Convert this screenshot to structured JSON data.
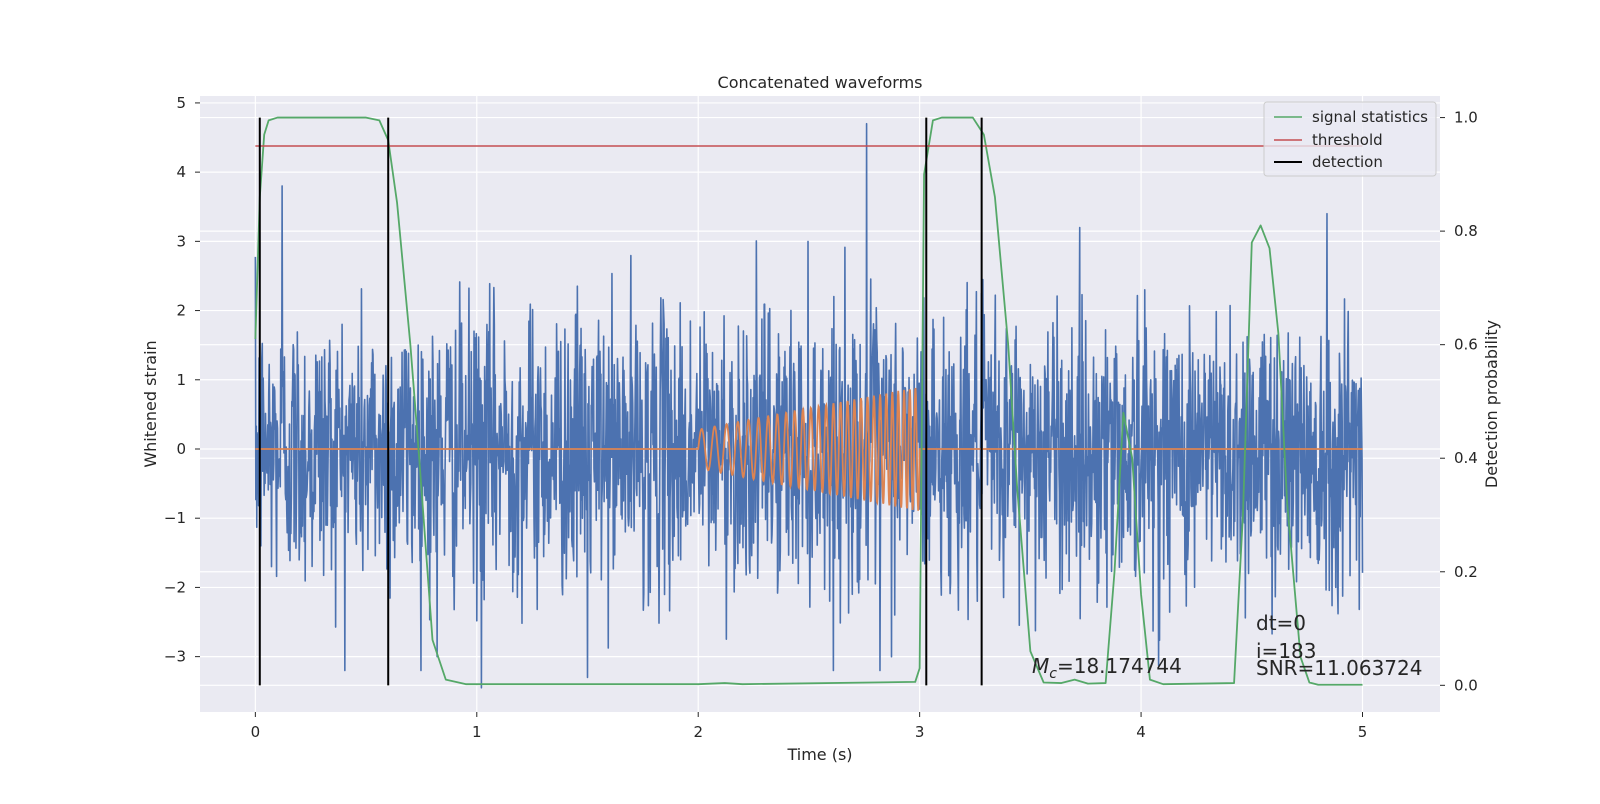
{
  "chart_data": {
    "type": "line",
    "title": "Concatenated waveforms",
    "xlabel": "Time (s)",
    "ylabel": "Whitened strain",
    "y2label": "Detection probability",
    "xlim": [
      -0.25,
      5.35
    ],
    "ylim": [
      -3.8,
      5.1
    ],
    "y2lim": [
      -0.047,
      1.038
    ],
    "x_ticks": [
      "0",
      "1",
      "2",
      "3",
      "4",
      "5"
    ],
    "y_ticks": [
      "−3",
      "−2",
      "−1",
      "0",
      "1",
      "2",
      "3",
      "4",
      "5"
    ],
    "y2_ticks": [
      "0.0",
      "0.2",
      "0.4",
      "0.6",
      "0.8",
      "1.0"
    ],
    "grid": true,
    "legend_position": "top-right",
    "series": [
      {
        "name": "",
        "kind": "whitened-strain-noise",
        "axis": "left",
        "color": "#4c72b0",
        "x_range": [
          0,
          5
        ],
        "approx_std": 1.0,
        "notable_peaks": [
          [
            0.12,
            3.8
          ],
          [
            2.76,
            4.7
          ],
          [
            4.84,
            3.4
          ],
          [
            0.82,
            -3.0
          ],
          [
            1.02,
            -3.45
          ],
          [
            1.5,
            -3.3
          ],
          [
            2.82,
            -3.2
          ]
        ]
      },
      {
        "name": "",
        "kind": "injected-chirp",
        "axis": "left",
        "color": "#dd8452",
        "x_range": [
          0,
          5
        ],
        "chirp_start": 2.0,
        "chirp_end": 3.0,
        "start_amplitude": 0.28,
        "end_amplitude": 0.9,
        "f_start_hz": 16,
        "f_end_hz": 40
      },
      {
        "name": "signal statistics",
        "axis": "right",
        "color": "#55a868",
        "points": [
          [
            0.0,
            0.61
          ],
          [
            0.02,
            0.86
          ],
          [
            0.04,
            0.97
          ],
          [
            0.06,
            0.995
          ],
          [
            0.1,
            1.0
          ],
          [
            0.5,
            1.0
          ],
          [
            0.56,
            0.995
          ],
          [
            0.6,
            0.96
          ],
          [
            0.64,
            0.85
          ],
          [
            0.7,
            0.6
          ],
          [
            0.74,
            0.4
          ],
          [
            0.8,
            0.08
          ],
          [
            0.86,
            0.01
          ],
          [
            0.95,
            0.002
          ],
          [
            2.0,
            0.002
          ],
          [
            2.12,
            0.004
          ],
          [
            2.2,
            0.002
          ],
          [
            2.98,
            0.006
          ],
          [
            3.0,
            0.03
          ],
          [
            3.02,
            0.9
          ],
          [
            3.06,
            0.995
          ],
          [
            3.1,
            1.0
          ],
          [
            3.24,
            1.0
          ],
          [
            3.29,
            0.97
          ],
          [
            3.34,
            0.86
          ],
          [
            3.4,
            0.6
          ],
          [
            3.44,
            0.35
          ],
          [
            3.5,
            0.06
          ],
          [
            3.56,
            0.005
          ],
          [
            3.64,
            0.004
          ],
          [
            3.7,
            0.01
          ],
          [
            3.76,
            0.003
          ],
          [
            3.84,
            0.004
          ],
          [
            3.88,
            0.2
          ],
          [
            3.92,
            0.48
          ],
          [
            3.96,
            0.4
          ],
          [
            4.0,
            0.16
          ],
          [
            4.04,
            0.01
          ],
          [
            4.1,
            0.002
          ],
          [
            4.42,
            0.004
          ],
          [
            4.46,
            0.3
          ],
          [
            4.5,
            0.78
          ],
          [
            4.54,
            0.81
          ],
          [
            4.58,
            0.77
          ],
          [
            4.62,
            0.62
          ],
          [
            4.66,
            0.32
          ],
          [
            4.72,
            0.05
          ],
          [
            4.76,
            0.005
          ],
          [
            4.8,
            0.001
          ],
          [
            5.0,
            0.001
          ]
        ]
      },
      {
        "name": "threshold",
        "axis": "right",
        "color": "#c44e52",
        "x": [
          0,
          5
        ],
        "value": 0.95
      },
      {
        "name": "detection",
        "axis": "right",
        "color": "#000000",
        "vertical_lines_x": [
          0.02,
          0.6,
          3.03,
          3.28
        ],
        "y_range": [
          0,
          1
        ]
      }
    ],
    "annotations": {
      "mc_text": "=18.174744",
      "dt_text": "dt=0",
      "i_text": "i=183",
      "snr_text": "SNR=11.063724"
    },
    "colors": {
      "background": "#eaeaf2",
      "grid": "#ffffff"
    }
  }
}
